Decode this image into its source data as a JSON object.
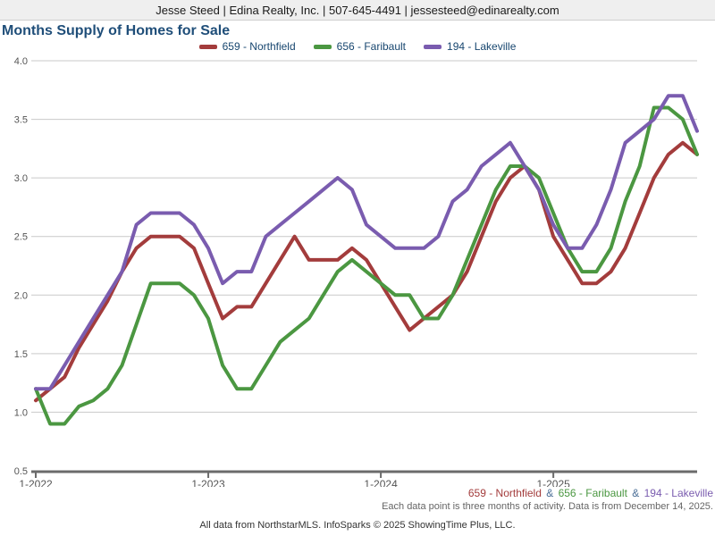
{
  "header": {
    "contact_line": "Jesse Steed | Edina Realty, Inc. | 507-645-4491 | jessesteed@edinarealty.com"
  },
  "title": "Months Supply of Homes for Sale",
  "footer": {
    "series_separator": "&",
    "separator_color": "#4a6e96",
    "activity_note": "Each data point is three months of activity. Data is from December 14, 2025.",
    "attribution": "All data from NorthstarMLS. InfoSparks © 2025 ShowingTime Plus, LLC."
  },
  "colors": {
    "title_text": "#1f4e79",
    "legend_text": "#17466f",
    "grid_line": "#c9c9c9",
    "axis_line": "#6b6b6b",
    "tick_label": "#555555",
    "header_background": "#efefef"
  },
  "chart_data": {
    "type": "line",
    "title": "Months Supply of Homes for Sale",
    "xlabel": "",
    "ylabel": "",
    "ylim": [
      0.5,
      4.0
    ],
    "y_ticks": [
      0.5,
      1.0,
      1.5,
      2.0,
      2.5,
      3.0,
      3.5,
      4.0
    ],
    "grid": true,
    "legend_position": "top",
    "x_axis_tick_labels": [
      "1-2022",
      "1-2023",
      "1-2024",
      "1-2025"
    ],
    "x": [
      "1-2022",
      "2-2022",
      "3-2022",
      "4-2022",
      "5-2022",
      "6-2022",
      "7-2022",
      "8-2022",
      "9-2022",
      "10-2022",
      "11-2022",
      "12-2022",
      "1-2023",
      "2-2023",
      "3-2023",
      "4-2023",
      "5-2023",
      "6-2023",
      "7-2023",
      "8-2023",
      "9-2023",
      "10-2023",
      "11-2023",
      "12-2023",
      "1-2024",
      "2-2024",
      "3-2024",
      "4-2024",
      "5-2024",
      "6-2024",
      "7-2024",
      "8-2024",
      "9-2024",
      "10-2024",
      "11-2024",
      "12-2024",
      "1-2025",
      "2-2025",
      "3-2025",
      "4-2025",
      "5-2025",
      "6-2025",
      "7-2025",
      "8-2025",
      "9-2025",
      "10-2025",
      "11-2025"
    ],
    "series": [
      {
        "name": "659 - Northfield",
        "color": "#a33c3c",
        "values": [
          1.1,
          1.2,
          1.3,
          1.55,
          1.75,
          1.95,
          2.2,
          2.4,
          2.5,
          2.5,
          2.5,
          2.4,
          2.1,
          1.8,
          1.9,
          1.9,
          2.1,
          2.3,
          2.5,
          2.3,
          2.3,
          2.3,
          2.4,
          2.3,
          2.1,
          1.9,
          1.7,
          1.8,
          1.9,
          2.0,
          2.2,
          2.5,
          2.8,
          3.0,
          3.1,
          2.9,
          2.5,
          2.3,
          2.1,
          2.1,
          2.2,
          2.4,
          2.7,
          3.0,
          3.2,
          3.3,
          3.2
        ]
      },
      {
        "name": "656 - Faribault",
        "color": "#4b9741",
        "values": [
          1.2,
          0.9,
          0.9,
          1.05,
          1.1,
          1.2,
          1.4,
          1.75,
          2.1,
          2.1,
          2.1,
          2.0,
          1.8,
          1.4,
          1.2,
          1.2,
          1.4,
          1.6,
          1.7,
          1.8,
          2.0,
          2.2,
          2.3,
          2.2,
          2.1,
          2.0,
          2.0,
          1.8,
          1.8,
          2.0,
          2.3,
          2.6,
          2.9,
          3.1,
          3.1,
          3.0,
          2.7,
          2.4,
          2.2,
          2.2,
          2.4,
          2.8,
          3.1,
          3.6,
          3.6,
          3.5,
          3.2
        ]
      },
      {
        "name": "194 - Lakeville",
        "color": "#7a5caf",
        "values": [
          1.2,
          1.2,
          1.4,
          1.6,
          1.8,
          2.0,
          2.2,
          2.6,
          2.7,
          2.7,
          2.7,
          2.6,
          2.4,
          2.1,
          2.2,
          2.2,
          2.5,
          2.6,
          2.7,
          2.8,
          2.9,
          3.0,
          2.9,
          2.6,
          2.5,
          2.4,
          2.4,
          2.4,
          2.5,
          2.8,
          2.9,
          3.1,
          3.2,
          3.3,
          3.1,
          2.9,
          2.6,
          2.4,
          2.4,
          2.6,
          2.9,
          3.3,
          3.4,
          3.5,
          3.7,
          3.7,
          3.4
        ]
      }
    ]
  }
}
